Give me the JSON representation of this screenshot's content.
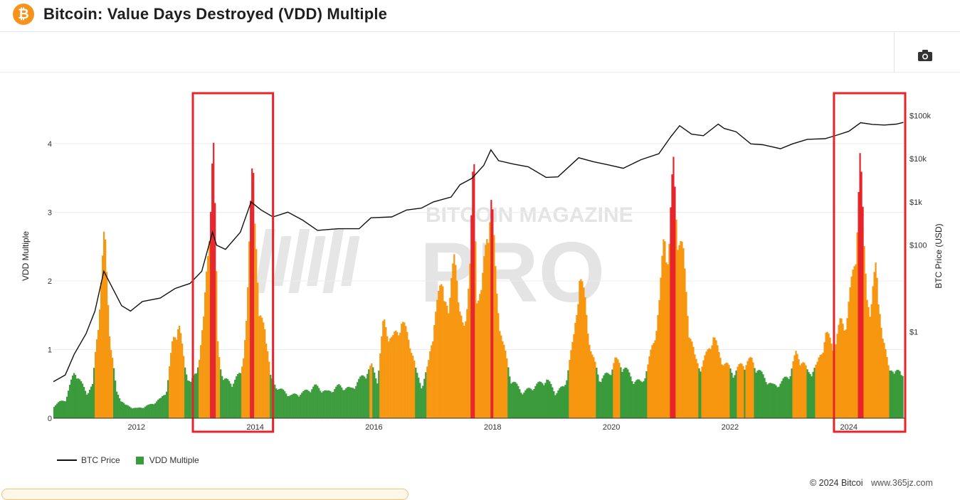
{
  "header": {
    "logo_glyph": "₿",
    "title": "Bitcoin: Value Days Destroyed (VDD) Multiple"
  },
  "toolbar": {
    "camera_icon": "camera-icon"
  },
  "watermark": {
    "line1": "BITCOIN MAGAZINE",
    "line2": "PRO"
  },
  "legend": {
    "price_label": "BTC Price",
    "vdd_label": "VDD Multiple"
  },
  "footer": {
    "copyright": "© 2024 Bitcoi",
    "site": "www.365jz.com"
  },
  "colors": {
    "green": "#3a9b3a",
    "orange": "#f7960f",
    "red": "#e8242b",
    "price_line": "#111111",
    "highlight_box": "#e8242b"
  },
  "chart_data": {
    "type": "area",
    "title": "Bitcoin: Value Days Destroyed (VDD) Multiple",
    "xlabel": "",
    "ylabel": "VDD Multiple",
    "y2label": "BTC Price (USD)",
    "x_ticks": [
      "2012",
      "2014",
      "2016",
      "2018",
      "2020",
      "2022",
      "2024"
    ],
    "y_ticks": [
      "0",
      "1",
      "2",
      "3",
      "4"
    ],
    "y2_ticks": [
      "$1",
      "$100",
      "$1k",
      "$10k",
      "$100k"
    ],
    "xlim": [
      2010.6,
      2024.95
    ],
    "ylim": [
      0,
      4.6
    ],
    "y2_scale": "log",
    "y2lim": [
      0.01,
      200000
    ],
    "color_bands": {
      "green_below": 0.75,
      "orange_from": 0.75,
      "red_from": 2.9
    },
    "highlight_periods": [
      [
        2012.95,
        2014.3
      ],
      [
        2023.75,
        2024.95
      ]
    ],
    "series": [
      {
        "name": "VDD Multiple",
        "points": [
          [
            2010.6,
            0.2
          ],
          [
            2010.8,
            0.3
          ],
          [
            2010.95,
            0.75
          ],
          [
            2011.05,
            0.55
          ],
          [
            2011.15,
            0.4
          ],
          [
            2011.25,
            0.5
          ],
          [
            2011.35,
            1.6
          ],
          [
            2011.45,
            2.85
          ],
          [
            2011.55,
            1.2
          ],
          [
            2011.65,
            0.4
          ],
          [
            2011.8,
            0.2
          ],
          [
            2012.0,
            0.15
          ],
          [
            2012.2,
            0.2
          ],
          [
            2012.4,
            0.3
          ],
          [
            2012.5,
            0.45
          ],
          [
            2012.6,
            1.2
          ],
          [
            2012.7,
            1.5
          ],
          [
            2012.8,
            0.8
          ],
          [
            2012.9,
            0.55
          ],
          [
            2013.0,
            0.7
          ],
          [
            2013.12,
            1.5
          ],
          [
            2013.2,
            2.7
          ],
          [
            2013.28,
            4.4
          ],
          [
            2013.36,
            1.1
          ],
          [
            2013.45,
            0.6
          ],
          [
            2013.6,
            0.55
          ],
          [
            2013.75,
            0.7
          ],
          [
            2013.85,
            1.6
          ],
          [
            2013.95,
            4.3
          ],
          [
            2014.05,
            1.5
          ],
          [
            2014.15,
            1.5
          ],
          [
            2014.25,
            0.6
          ],
          [
            2014.4,
            0.45
          ],
          [
            2014.6,
            0.35
          ],
          [
            2014.8,
            0.4
          ],
          [
            2015.0,
            0.5
          ],
          [
            2015.2,
            0.4
          ],
          [
            2015.4,
            0.5
          ],
          [
            2015.6,
            0.45
          ],
          [
            2015.8,
            0.65
          ],
          [
            2015.95,
            0.8
          ],
          [
            2016.05,
            0.6
          ],
          [
            2016.15,
            1.5
          ],
          [
            2016.3,
            1.2
          ],
          [
            2016.45,
            1.5
          ],
          [
            2016.6,
            1.2
          ],
          [
            2016.7,
            0.7
          ],
          [
            2016.8,
            0.5
          ],
          [
            2016.9,
            0.8
          ],
          [
            2017.0,
            1.5
          ],
          [
            2017.15,
            2.2
          ],
          [
            2017.25,
            1.5
          ],
          [
            2017.35,
            2.9
          ],
          [
            2017.42,
            1.6
          ],
          [
            2017.5,
            1.4
          ],
          [
            2017.6,
            2.2
          ],
          [
            2017.67,
            4.1
          ],
          [
            2017.72,
            2.0
          ],
          [
            2017.8,
            1.9
          ],
          [
            2017.9,
            3.0
          ],
          [
            2017.97,
            3.4
          ],
          [
            2018.05,
            2.0
          ],
          [
            2018.15,
            1.2
          ],
          [
            2018.3,
            0.6
          ],
          [
            2018.5,
            0.4
          ],
          [
            2018.7,
            0.5
          ],
          [
            2018.9,
            0.6
          ],
          [
            2019.05,
            0.4
          ],
          [
            2019.2,
            0.5
          ],
          [
            2019.35,
            1.2
          ],
          [
            2019.45,
            2.2
          ],
          [
            2019.55,
            1.8
          ],
          [
            2019.65,
            1.0
          ],
          [
            2019.8,
            0.6
          ],
          [
            2019.95,
            0.7
          ],
          [
            2020.05,
            0.9
          ],
          [
            2020.2,
            0.8
          ],
          [
            2020.35,
            0.6
          ],
          [
            2020.5,
            0.55
          ],
          [
            2020.6,
            0.8
          ],
          [
            2020.7,
            1.2
          ],
          [
            2020.8,
            1.8
          ],
          [
            2020.88,
            2.9
          ],
          [
            2020.95,
            2.5
          ],
          [
            2021.03,
            3.9
          ],
          [
            2021.1,
            3.0
          ],
          [
            2021.2,
            2.5
          ],
          [
            2021.3,
            1.4
          ],
          [
            2021.4,
            0.9
          ],
          [
            2021.5,
            0.8
          ],
          [
            2021.6,
            1.0
          ],
          [
            2021.7,
            1.3
          ],
          [
            2021.8,
            1.0
          ],
          [
            2021.9,
            0.85
          ],
          [
            2022.05,
            0.7
          ],
          [
            2022.2,
            0.85
          ],
          [
            2022.35,
            0.9
          ],
          [
            2022.5,
            0.7
          ],
          [
            2022.7,
            0.5
          ],
          [
            2022.85,
            0.55
          ],
          [
            2023.0,
            0.7
          ],
          [
            2023.1,
            1.0
          ],
          [
            2023.2,
            0.9
          ],
          [
            2023.3,
            0.7
          ],
          [
            2023.45,
            0.8
          ],
          [
            2023.6,
            1.3
          ],
          [
            2023.75,
            1.1
          ],
          [
            2023.85,
            1.5
          ],
          [
            2023.95,
            1.5
          ],
          [
            2024.05,
            2.2
          ],
          [
            2024.1,
            2.6
          ],
          [
            2024.18,
            4.0
          ],
          [
            2024.25,
            2.6
          ],
          [
            2024.35,
            1.5
          ],
          [
            2024.45,
            2.5
          ],
          [
            2024.55,
            1.2
          ],
          [
            2024.65,
            0.9
          ],
          [
            2024.75,
            0.65
          ],
          [
            2024.85,
            0.8
          ],
          [
            2024.92,
            0.6
          ]
        ]
      },
      {
        "name": "BTC Price",
        "points": [
          [
            2010.6,
            0.07
          ],
          [
            2010.8,
            0.1
          ],
          [
            2010.95,
            0.3
          ],
          [
            2011.15,
            0.9
          ],
          [
            2011.3,
            3
          ],
          [
            2011.45,
            25
          ],
          [
            2011.6,
            10
          ],
          [
            2011.75,
            4
          ],
          [
            2011.9,
            3
          ],
          [
            2012.1,
            5
          ],
          [
            2012.4,
            6
          ],
          [
            2012.65,
            10
          ],
          [
            2012.9,
            13
          ],
          [
            2013.1,
            25
          ],
          [
            2013.28,
            200
          ],
          [
            2013.35,
            100
          ],
          [
            2013.5,
            80
          ],
          [
            2013.75,
            200
          ],
          [
            2013.93,
            1000
          ],
          [
            2014.1,
            650
          ],
          [
            2014.3,
            450
          ],
          [
            2014.55,
            580
          ],
          [
            2014.8,
            380
          ],
          [
            2015.05,
            220
          ],
          [
            2015.4,
            240
          ],
          [
            2015.75,
            240
          ],
          [
            2015.95,
            430
          ],
          [
            2016.3,
            450
          ],
          [
            2016.55,
            650
          ],
          [
            2016.8,
            720
          ],
          [
            2017.0,
            1000
          ],
          [
            2017.3,
            1300
          ],
          [
            2017.45,
            2500
          ],
          [
            2017.65,
            3500
          ],
          [
            2017.85,
            7000
          ],
          [
            2017.97,
            16000
          ],
          [
            2018.1,
            9000
          ],
          [
            2018.35,
            7500
          ],
          [
            2018.6,
            6500
          ],
          [
            2018.9,
            3700
          ],
          [
            2019.1,
            3800
          ],
          [
            2019.45,
            10500
          ],
          [
            2019.7,
            8500
          ],
          [
            2019.95,
            7200
          ],
          [
            2020.2,
            6000
          ],
          [
            2020.5,
            9500
          ],
          [
            2020.8,
            13000
          ],
          [
            2021.0,
            32000
          ],
          [
            2021.15,
            58000
          ],
          [
            2021.35,
            37000
          ],
          [
            2021.55,
            34000
          ],
          [
            2021.8,
            63000
          ],
          [
            2021.9,
            50000
          ],
          [
            2022.1,
            42000
          ],
          [
            2022.35,
            22000
          ],
          [
            2022.55,
            21000
          ],
          [
            2022.85,
            17000
          ],
          [
            2023.05,
            22000
          ],
          [
            2023.3,
            28000
          ],
          [
            2023.6,
            29000
          ],
          [
            2023.8,
            35000
          ],
          [
            2024.0,
            43000
          ],
          [
            2024.2,
            68000
          ],
          [
            2024.4,
            62000
          ],
          [
            2024.6,
            60000
          ],
          [
            2024.8,
            63000
          ],
          [
            2024.92,
            69000
          ]
        ]
      }
    ]
  }
}
